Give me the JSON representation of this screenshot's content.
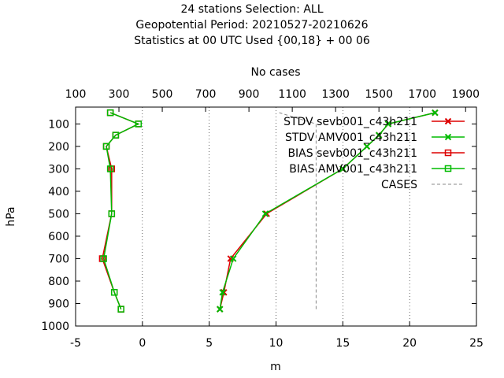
{
  "chart_data": {
    "type": "line",
    "title_lines": [
      "24 stations Selection: ALL",
      "Geopotential  Period: 20210527-20210626",
      "Statistics at 00 UTC  Used {00,18} + 00 06"
    ],
    "xlabel": "m",
    "ylabel": "hPa",
    "x2label": "No cases",
    "xlim": [
      -5,
      25
    ],
    "x_ticks": [
      -5,
      0,
      5,
      10,
      15,
      20,
      25
    ],
    "x_tick_labels": [
      "-5",
      "0",
      "5",
      "10",
      "15",
      "20",
      "25"
    ],
    "x2lim": [
      100,
      1950
    ],
    "x2_ticks": [
      100,
      300,
      500,
      700,
      900,
      1100,
      1300,
      1500,
      1700,
      1900
    ],
    "x2_tick_labels": [
      "100",
      "300",
      "500",
      "700",
      "900",
      "1100",
      "1300",
      "1500",
      "1700",
      "1900"
    ],
    "ylim": [
      1000,
      25
    ],
    "y_ticks": [
      100,
      200,
      300,
      400,
      500,
      600,
      700,
      800,
      900,
      1000
    ],
    "y_tick_labels": [
      "100",
      "200",
      "300",
      "400",
      "500",
      "600",
      "700",
      "800",
      "900",
      "1000"
    ],
    "vertical_grid_x": [
      0,
      5,
      10,
      15,
      20
    ],
    "legend_position": "top-right",
    "colors": {
      "red": "#dd0000",
      "green": "#00bb00",
      "gray": "#888888"
    },
    "series": [
      {
        "name": "STDV sevb001_c43h211",
        "marker": "x",
        "color": "#dd0000",
        "points": [
          [
            21.9,
            50
          ],
          [
            18.4,
            100
          ],
          [
            17.7,
            150
          ],
          [
            16.8,
            200
          ],
          [
            15.0,
            300
          ],
          [
            9.3,
            500
          ],
          [
            6.6,
            700
          ],
          [
            6.1,
            850
          ],
          [
            5.8,
            925
          ]
        ]
      },
      {
        "name": "STDV AMV001_c43h211",
        "marker": "x",
        "color": "#00bb00",
        "points": [
          [
            21.9,
            50
          ],
          [
            18.4,
            100
          ],
          [
            17.7,
            150
          ],
          [
            16.8,
            200
          ],
          [
            15.0,
            300
          ],
          [
            9.2,
            500
          ],
          [
            6.8,
            700
          ],
          [
            6.0,
            850
          ],
          [
            5.8,
            925
          ]
        ]
      },
      {
        "name": "BIAS sevb001_c43h211",
        "marker": "square",
        "color": "#dd0000",
        "points": [
          [
            -2.4,
            50
          ],
          [
            -0.3,
            100
          ],
          [
            -2.0,
            150
          ],
          [
            -2.7,
            200
          ],
          [
            -2.3,
            300
          ],
          [
            -2.3,
            500
          ],
          [
            -3.0,
            700
          ],
          [
            -2.1,
            850
          ],
          [
            -1.6,
            925
          ]
        ]
      },
      {
        "name": "BIAS AMV001_c43h211",
        "marker": "square",
        "color": "#00bb00",
        "points": [
          [
            -2.4,
            50
          ],
          [
            -0.3,
            100
          ],
          [
            -2.0,
            150
          ],
          [
            -2.7,
            200
          ],
          [
            -2.4,
            300
          ],
          [
            -2.3,
            500
          ],
          [
            -2.9,
            700
          ],
          [
            -2.1,
            850
          ],
          [
            -1.6,
            925
          ]
        ]
      },
      {
        "name": "CASES",
        "marker": "none",
        "color": "#888888",
        "axis": "x2",
        "points": [
          [
            1040,
            50
          ],
          [
            1210,
            100
          ],
          [
            1210,
            200
          ],
          [
            1210,
            300
          ],
          [
            1210,
            400
          ],
          [
            1210,
            500
          ],
          [
            1210,
            600
          ],
          [
            1210,
            700
          ],
          [
            1210,
            800
          ],
          [
            1210,
            925
          ]
        ]
      }
    ]
  }
}
